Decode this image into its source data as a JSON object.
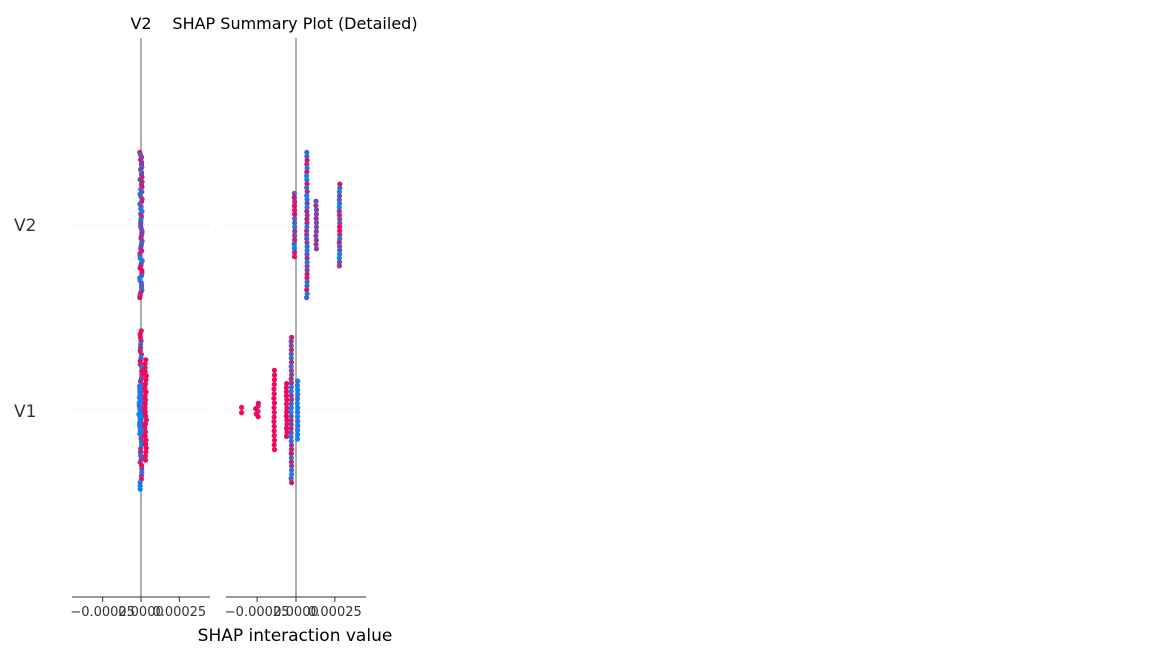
{
  "chart_data": {
    "type": "scatter",
    "title": "SHAP Summary Plot (Detailed)",
    "xlabel": "SHAP interaction value",
    "features": [
      "V2",
      "V1"
    ],
    "xtick_labels": [
      "−0.00025",
      "0.0000",
      "0.00025"
    ],
    "xtick_values": [
      -0.00025,
      0.0,
      0.00025
    ],
    "xlim": [
      -0.00045,
      0.00045
    ],
    "grid": false,
    "colors": {
      "low": "#008afb",
      "high": "#ff0052",
      "zero_line": "#999999",
      "row_line": "#cccccc",
      "axis": "#333333"
    },
    "panels": [
      {
        "title": "V2",
        "rows": [
          {
            "feature": "V2",
            "clusters": [
              {
                "x": 0.0,
                "n": 60,
                "spread": 0.55,
                "jitter": 8e-06,
                "palette": "mixed"
              }
            ]
          },
          {
            "feature": "V1",
            "clusters": [
              {
                "x": 0.0,
                "n": 48,
                "spread": 0.6,
                "jitter": 6e-06,
                "palette": "mixed"
              },
              {
                "x": 3e-05,
                "n": 26,
                "spread": 0.38,
                "jitter": 5e-06,
                "palette": "red"
              },
              {
                "x": -1e-05,
                "n": 18,
                "spread": 0.18,
                "jitter": 6e-06,
                "palette": "blue"
              }
            ]
          }
        ]
      },
      {
        "title": "",
        "rows": [
          {
            "feature": "V2",
            "clusters": [
              {
                "x": 7e-05,
                "n": 38,
                "spread": 0.55,
                "jitter": 2e-06,
                "palette": "mixed"
              },
              {
                "x": 0.00028,
                "n": 22,
                "spread": 0.31,
                "jitter": 2e-06,
                "palette": "mixed"
              },
              {
                "x": 0.00013,
                "n": 12,
                "spread": 0.18,
                "jitter": 2e-06,
                "palette": "purple"
              },
              {
                "x": -1e-05,
                "n": 16,
                "spread": 0.24,
                "jitter": 2e-06,
                "palette": "mixed"
              }
            ]
          },
          {
            "feature": "V1",
            "clusters": [
              {
                "x": -3e-05,
                "n": 36,
                "spread": 0.55,
                "jitter": 2e-06,
                "palette": "mixed"
              },
              {
                "x": 1e-05,
                "n": 14,
                "spread": 0.22,
                "jitter": 2e-06,
                "palette": "blue"
              },
              {
                "x": -0.00014,
                "n": 18,
                "spread": 0.3,
                "jitter": 2e-06,
                "palette": "red"
              },
              {
                "x": -6e-05,
                "n": 14,
                "spread": 0.2,
                "jitter": 2e-06,
                "palette": "red"
              },
              {
                "x": -0.00025,
                "n": 6,
                "spread": 0.05,
                "jitter": 1.2e-05,
                "palette": "red"
              },
              {
                "x": -0.00035,
                "n": 2,
                "spread": 0.02,
                "jitter": 0.0,
                "palette": "red"
              }
            ]
          }
        ]
      }
    ]
  }
}
